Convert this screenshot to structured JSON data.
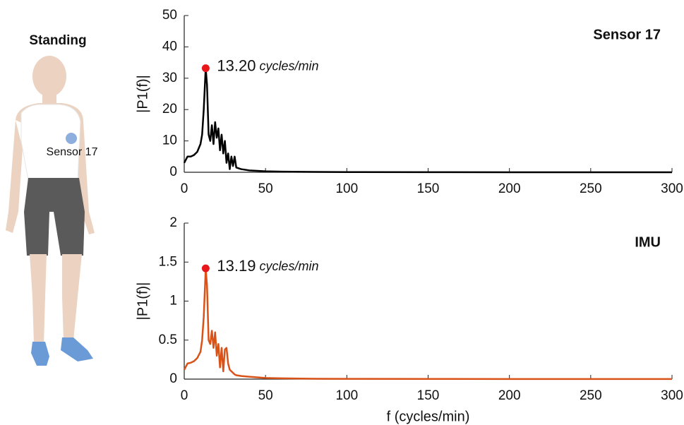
{
  "figure": {
    "posture": "Standing",
    "sensor_label": "Sensor 17"
  },
  "chart_data": [
    {
      "type": "line",
      "title": "Sensor 17",
      "ylabel": "|P1(f)|",
      "x": [
        0,
        2,
        4,
        6,
        8,
        10,
        11,
        12,
        13,
        13.2,
        14,
        15,
        16,
        17,
        18,
        19,
        20,
        21,
        22,
        23,
        24,
        25,
        26,
        27,
        28,
        29,
        30,
        31,
        32,
        35,
        40,
        50,
        60,
        80,
        100,
        150,
        200,
        250,
        300
      ],
      "series": [
        {
          "name": "Sensor 17",
          "color": "#000000",
          "values": [
            3,
            5,
            5,
            5.5,
            6.5,
            9,
            12,
            20,
            31,
            33.2,
            28,
            12,
            10,
            15,
            9,
            16,
            11,
            14,
            7,
            12,
            6,
            10,
            3,
            6,
            1,
            5,
            2,
            5,
            1.5,
            1,
            0.6,
            0.3,
            0.2,
            0.1,
            0.05,
            0.02,
            0.01,
            0.01,
            0.01
          ]
        }
      ],
      "peak": {
        "x": 13.2,
        "y": 33.2,
        "label": "13.20",
        "unit": "cycles/min",
        "color": "#e8171b"
      },
      "xlim": [
        0,
        300
      ],
      "xticks": [
        0,
        50,
        100,
        150,
        200,
        250,
        300
      ],
      "ylim": [
        0,
        50
      ],
      "yticks": [
        0,
        10,
        20,
        30,
        40,
        50
      ],
      "grid": false
    },
    {
      "type": "line",
      "title": "IMU",
      "ylabel": "|P1(f)|",
      "xlabel": "f (cycles/min)",
      "x": [
        0,
        2,
        4,
        6,
        8,
        10,
        11,
        12,
        13,
        13.2,
        14,
        15,
        16,
        17,
        18,
        19,
        20,
        21,
        22,
        23,
        24,
        25,
        26,
        27,
        28,
        29,
        30,
        31,
        32,
        35,
        40,
        50,
        60,
        80,
        100,
        150,
        200,
        250,
        300
      ],
      "series": [
        {
          "name": "IMU",
          "color": "#d95319",
          "values": [
            0.12,
            0.2,
            0.21,
            0.23,
            0.27,
            0.35,
            0.5,
            0.8,
            1.3,
            1.42,
            1.2,
            0.5,
            0.45,
            0.62,
            0.4,
            0.6,
            0.3,
            0.45,
            0.15,
            0.4,
            0.1,
            0.38,
            0.4,
            0.2,
            0.12,
            0.1,
            0.08,
            0.06,
            0.05,
            0.04,
            0.03,
            0.015,
            0.01,
            0.005,
            0.003,
            0.002,
            0.001,
            0.001,
            0.001
          ]
        }
      ],
      "peak": {
        "x": 13.19,
        "y": 1.42,
        "label": "13.19",
        "unit": "cycles/min",
        "color": "#e8171b"
      },
      "xlim": [
        0,
        300
      ],
      "xticks": [
        0,
        50,
        100,
        150,
        200,
        250,
        300
      ],
      "ylim": [
        0,
        2
      ],
      "yticks": [
        0,
        0.5,
        1,
        1.5,
        2
      ],
      "grid": false
    }
  ]
}
